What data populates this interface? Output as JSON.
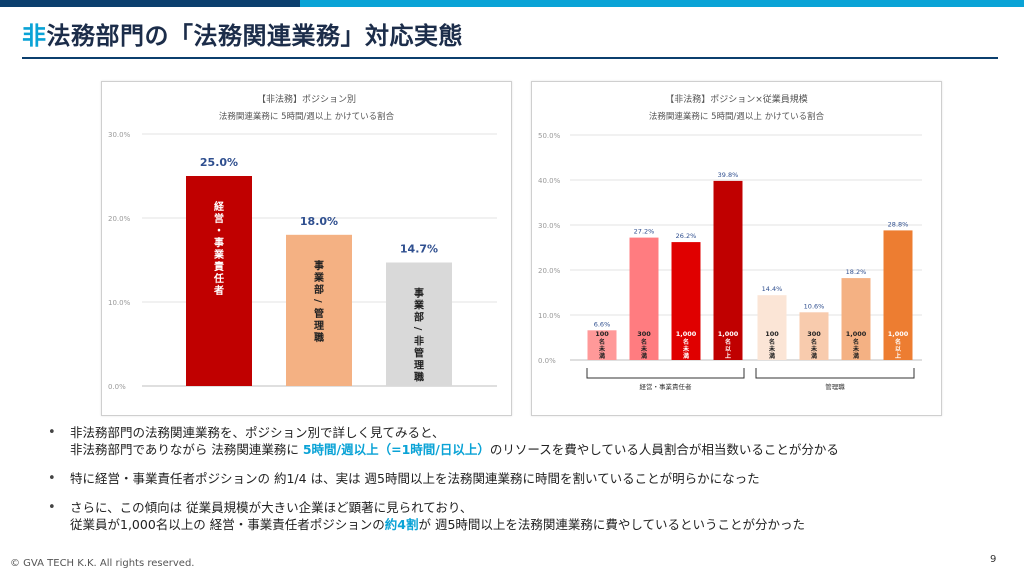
{
  "header": {
    "title_accent": "非",
    "title_rest": "法務部門の「法務関連業務」対応実態"
  },
  "chart1": {
    "panel_title": "【非法務】ポジション別",
    "panel_subtitle": "法務関連業務に 5時間/週以上 かけている割合"
  },
  "chart2": {
    "panel_title": "【非法務】ポジション×従業員規模",
    "panel_subtitle": "法務関連業務に 5時間/週以上 かけている割合",
    "group_labels": [
      "経営・事業責任者",
      "管理職"
    ]
  },
  "chart_data": [
    {
      "type": "bar",
      "title": "【非法務】ポジション別",
      "subtitle": "法務関連業務に 5時間/週以上 かけている割合",
      "categories": [
        "経営・事業責任者",
        "事業部／管理職",
        "事業部／非管理職"
      ],
      "values": [
        25.0,
        18.0,
        14.7
      ],
      "value_labels": [
        "25.0%",
        "18.0%",
        "14.7%"
      ],
      "colors": [
        "#c00000",
        "#f4b183",
        "#d9d9d9"
      ],
      "ylim": [
        0,
        30
      ],
      "yticks": [
        "0.0%",
        "10.0%",
        "20.0%",
        "30.0%"
      ],
      "grid": true
    },
    {
      "type": "bar",
      "title": "【非法務】ポジション×従業員規模",
      "subtitle": "法務関連業務に 5時間/週以上 かけている割合",
      "categories": [
        "100名未満",
        "300名未満",
        "1,000名未満",
        "1,000名以上",
        "100名未満",
        "300名未満",
        "1,000名未満",
        "1,000名以上"
      ],
      "bar_top_labels": [
        "100",
        "300",
        "1,000",
        "1,000",
        "100",
        "300",
        "1,000",
        "1,000"
      ],
      "bar_sub_labels": [
        "名未満",
        "名未満",
        "名未満",
        "名以上",
        "名未満",
        "名未満",
        "名未満",
        "名以上"
      ],
      "groups": [
        "経営・事業責任者",
        "管理職"
      ],
      "values": [
        6.6,
        27.2,
        26.2,
        39.8,
        14.4,
        10.6,
        18.2,
        28.8
      ],
      "value_labels": [
        "6.6%",
        "27.2%",
        "26.2%",
        "39.8%",
        "14.4%",
        "10.6%",
        "18.2%",
        "28.8%"
      ],
      "colors": [
        "#ff9999",
        "#ff7c80",
        "#e00000",
        "#c00000",
        "#fbe5d6",
        "#f8cbad",
        "#f4b183",
        "#ed7d31"
      ],
      "ylim": [
        0,
        50
      ],
      "yticks": [
        "0.0%",
        "10.0%",
        "20.0%",
        "30.0%",
        "40.0%",
        "50.0%"
      ],
      "grid": true
    }
  ],
  "bullets": {
    "b1_line1": "非法務部門の法務関連業務を、ポジション別で詳しく見てみると、",
    "b1_line2_pre": "非法務部門でありながら 法務関連業務に ",
    "b1_line2_hl": "5時間/週以上（=1時間/日以上）",
    "b1_line2_post": "のリソースを費やしている人員割合が相当数いることが分かる",
    "b2": "特に経営・事業責任者ポジションの 約1/4 は、実は 週5時間以上を法務関連業務に時間を割いていることが明らかになった",
    "b3_line1": "さらに、この傾向は 従業員規模が大きい企業ほど顕著に見られており、",
    "b3_line2_pre": "従業員が1,000名以上の 経営・事業責任者ポジションの",
    "b3_line2_hl": "約4割",
    "b3_line2_post": "が 週5時間以上を法務関連業務に費やしているということが分かった"
  },
  "footer": {
    "copyright": "© GVA TECH K.K. All rights reserved.",
    "page": "9"
  }
}
